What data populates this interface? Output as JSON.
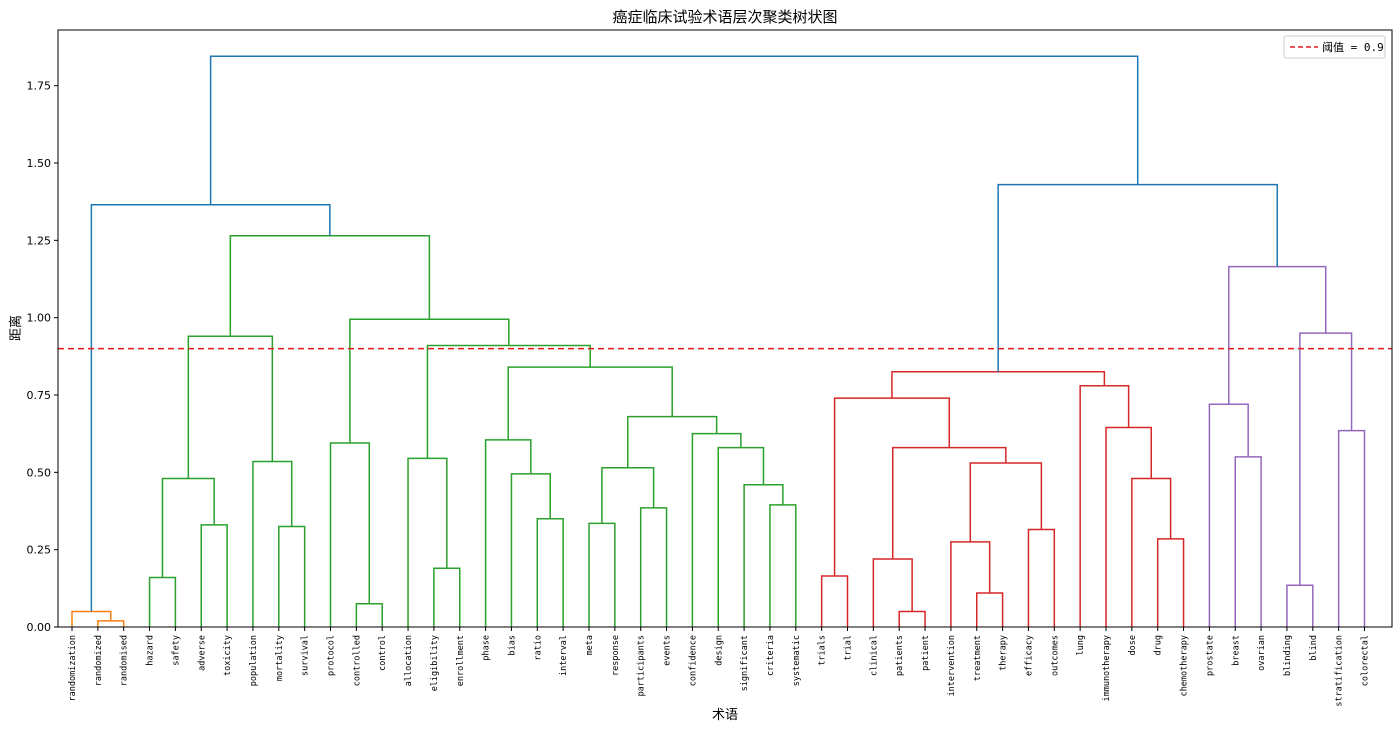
{
  "chart_data": {
    "type": "dendrogram",
    "title": "癌症临床试验术语层次聚类树状图",
    "xlabel": "术语",
    "ylabel": "距离",
    "ylim": [
      0,
      1.93
    ],
    "yticks": [
      "0.00",
      "0.25",
      "0.50",
      "0.75",
      "1.00",
      "1.25",
      "1.50",
      "1.75"
    ],
    "ytick_values": [
      0,
      0.25,
      0.5,
      0.75,
      1.0,
      1.25,
      1.5,
      1.75
    ],
    "threshold": {
      "value": 0.9,
      "label": "阈值 = 0.9",
      "color": "#e8191a"
    },
    "legend_position": "top-right",
    "leaves": [
      "randomization",
      "randomized",
      "randomised",
      "hazard",
      "safety",
      "adverse",
      "toxicity",
      "population",
      "mortality",
      "survival",
      "protocol",
      "controlled",
      "control",
      "allocation",
      "eligibility",
      "enrollment",
      "phase",
      "bias",
      "ratio",
      "interval",
      "meta",
      "response",
      "participants",
      "events",
      "confidence",
      "design",
      "significant",
      "criteria",
      "systematic",
      "trials",
      "trial",
      "clinical",
      "patients",
      "patient",
      "intervention",
      "treatment",
      "therapy",
      "efficacy",
      "outcomes",
      "lung",
      "immunotherapy",
      "dose",
      "drug",
      "chemotherapy",
      "prostate",
      "breast",
      "ovarian",
      "blinding",
      "blind",
      "stratification",
      "colorectal"
    ],
    "colors": {
      "orange": "#ff7f0e",
      "green": "#2ca02c",
      "red": "#d62728",
      "purple": "#9467bd",
      "blue": "#1f77b4"
    },
    "links": [
      {
        "a": "L1",
        "b": "L2",
        "h": 0.02,
        "c": "orange"
      },
      {
        "a": "L0",
        "b": "N0",
        "h": 0.05,
        "c": "orange"
      },
      {
        "a": "L3",
        "b": "L4",
        "h": 0.16,
        "c": "green"
      },
      {
        "a": "L5",
        "b": "L6",
        "h": 0.33,
        "c": "green"
      },
      {
        "a": "N2",
        "b": "N3",
        "h": 0.48,
        "c": "green"
      },
      {
        "a": "L8",
        "b": "L9",
        "h": 0.325,
        "c": "green"
      },
      {
        "a": "L7",
        "b": "N5",
        "h": 0.535,
        "c": "green"
      },
      {
        "a": "N4",
        "b": "N6",
        "h": 0.94,
        "c": "green"
      },
      {
        "a": "L11",
        "b": "L12",
        "h": 0.075,
        "c": "green"
      },
      {
        "a": "L10",
        "b": "N8",
        "h": 0.595,
        "c": "green"
      },
      {
        "a": "L14",
        "b": "L15",
        "h": 0.19,
        "c": "green"
      },
      {
        "a": "L13",
        "b": "N10",
        "h": 0.545,
        "c": "green"
      },
      {
        "a": "L18",
        "b": "L19",
        "h": 0.35,
        "c": "green"
      },
      {
        "a": "L17",
        "b": "N12",
        "h": 0.495,
        "c": "green"
      },
      {
        "a": "L16",
        "b": "N13",
        "h": 0.605,
        "c": "green"
      },
      {
        "a": "L20",
        "b": "L21",
        "h": 0.335,
        "c": "green"
      },
      {
        "a": "L22",
        "b": "L23",
        "h": 0.385,
        "c": "green"
      },
      {
        "a": "N15",
        "b": "N16",
        "h": 0.515,
        "c": "green"
      },
      {
        "a": "L27",
        "b": "L28",
        "h": 0.395,
        "c": "green"
      },
      {
        "a": "L26",
        "b": "N18",
        "h": 0.46,
        "c": "green"
      },
      {
        "a": "L25",
        "b": "N19",
        "h": 0.58,
        "c": "green"
      },
      {
        "a": "L24",
        "b": "N20",
        "h": 0.625,
        "c": "green"
      },
      {
        "a": "N17",
        "b": "N21",
        "h": 0.68,
        "c": "green"
      },
      {
        "a": "N14",
        "b": "N22",
        "h": 0.84,
        "c": "green"
      },
      {
        "a": "N11",
        "b": "N23",
        "h": 0.91,
        "c": "green"
      },
      {
        "a": "N9",
        "b": "N24",
        "h": 0.995,
        "c": "green"
      },
      {
        "a": "N7",
        "b": "N25",
        "h": 1.265,
        "c": "green"
      },
      {
        "a": "N1",
        "b": "N26",
        "h": 1.365,
        "c": "blue"
      },
      {
        "a": "L29",
        "b": "L30",
        "h": 0.165,
        "c": "red"
      },
      {
        "a": "L32",
        "b": "L33",
        "h": 0.05,
        "c": "red"
      },
      {
        "a": "L31",
        "b": "N29",
        "h": 0.22,
        "c": "red"
      },
      {
        "a": "L35",
        "b": "L36",
        "h": 0.11,
        "c": "red"
      },
      {
        "a": "L34",
        "b": "N31",
        "h": 0.275,
        "c": "red"
      },
      {
        "a": "L37",
        "b": "L38",
        "h": 0.315,
        "c": "red"
      },
      {
        "a": "N32",
        "b": "N33",
        "h": 0.53,
        "c": "red"
      },
      {
        "a": "N30",
        "b": "N34",
        "h": 0.58,
        "c": "red"
      },
      {
        "a": "N28",
        "b": "N35",
        "h": 0.74,
        "c": "red"
      },
      {
        "a": "L42",
        "b": "L43",
        "h": 0.285,
        "c": "red"
      },
      {
        "a": "L41",
        "b": "N37",
        "h": 0.48,
        "c": "red"
      },
      {
        "a": "L40",
        "b": "N38",
        "h": 0.645,
        "c": "red"
      },
      {
        "a": "L39",
        "b": "N39",
        "h": 0.78,
        "c": "red"
      },
      {
        "a": "N36",
        "b": "N40",
        "h": 0.825,
        "c": "red"
      },
      {
        "a": "L45",
        "b": "L46",
        "h": 0.55,
        "c": "purple"
      },
      {
        "a": "L44",
        "b": "N42",
        "h": 0.72,
        "c": "purple"
      },
      {
        "a": "L47",
        "b": "L48",
        "h": 0.135,
        "c": "purple"
      },
      {
        "a": "L49",
        "b": "L50",
        "h": 0.635,
        "c": "purple"
      },
      {
        "a": "N44",
        "b": "N45",
        "h": 0.95,
        "c": "purple"
      },
      {
        "a": "N43",
        "b": "N46",
        "h": 1.165,
        "c": "purple"
      },
      {
        "a": "N41",
        "b": "N47",
        "h": 1.43,
        "c": "blue"
      },
      {
        "a": "N27",
        "b": "N48",
        "h": 1.845,
        "c": "blue"
      }
    ]
  }
}
